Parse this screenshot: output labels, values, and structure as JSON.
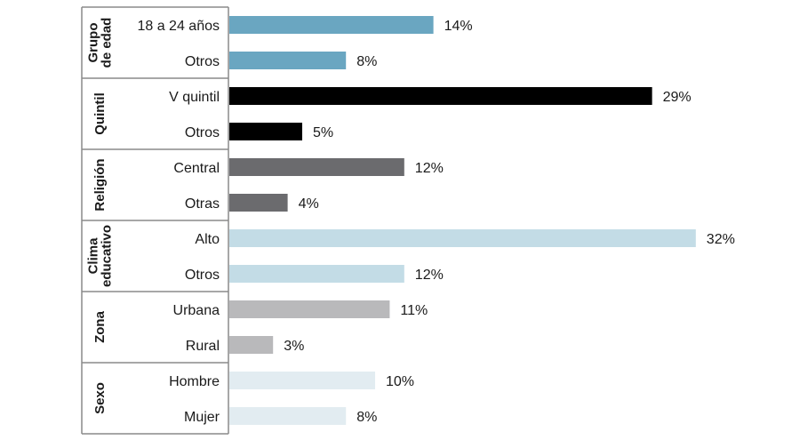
{
  "chart_data": {
    "type": "bar",
    "orientation": "horizontal",
    "value_max": 32,
    "groups": [
      {
        "label_lines": [
          "Grupo",
          "de edad"
        ],
        "color": "#6aa6c1",
        "items": [
          {
            "category": "18 a 24 años",
            "value": 14,
            "label": "14%"
          },
          {
            "category": "Otros",
            "value": 8,
            "label": "8%"
          }
        ]
      },
      {
        "label_lines": [
          "Quintil"
        ],
        "color": "#000000",
        "items": [
          {
            "category": "V quintil",
            "value": 29,
            "label": "29%"
          },
          {
            "category": "Otros",
            "value": 5,
            "label": "5%"
          }
        ]
      },
      {
        "label_lines": [
          "Religión"
        ],
        "color": "#6b6b6e",
        "items": [
          {
            "category": "Central",
            "value": 12,
            "label": "12%"
          },
          {
            "category": "Otras",
            "value": 4,
            "label": "4%"
          }
        ]
      },
      {
        "label_lines": [
          "Clima",
          "educativo"
        ],
        "color": "#c3dce6",
        "items": [
          {
            "category": "Alto",
            "value": 32,
            "label": "32%"
          },
          {
            "category": "Otros",
            "value": 12,
            "label": "12%"
          }
        ]
      },
      {
        "label_lines": [
          "Zona"
        ],
        "color": "#b9b9bb",
        "items": [
          {
            "category": "Urbana",
            "value": 11,
            "label": "11%"
          },
          {
            "category": "Rural",
            "value": 3,
            "label": "3%"
          }
        ]
      },
      {
        "label_lines": [
          "Sexo"
        ],
        "color": "#e2ecf1",
        "items": [
          {
            "category": "Hombre",
            "value": 10,
            "label": "10%"
          },
          {
            "category": "Mujer",
            "value": 8,
            "label": "8%"
          }
        ]
      }
    ]
  }
}
